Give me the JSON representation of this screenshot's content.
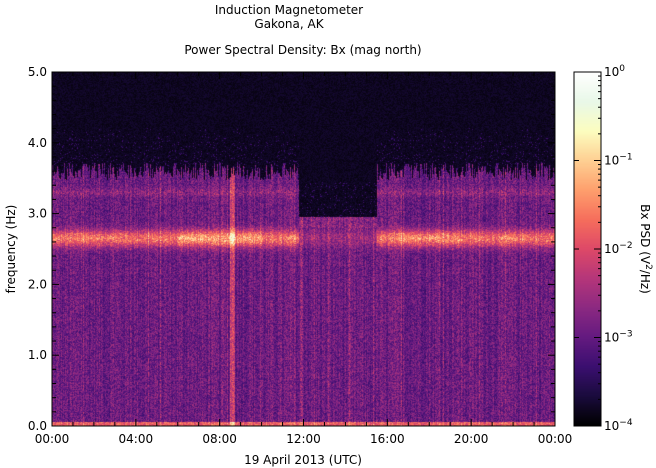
{
  "header": {
    "line1": "Induction Magnetometer",
    "line2": "Gakona, AK",
    "subtitle": "Power Spectral Density: Bx (mag north)"
  },
  "chart_data": {
    "type": "heatmap",
    "title": "Power Spectral Density: Bx (mag north)",
    "xlabel": "19 April 2013 (UTC)",
    "ylabel": "frequency (Hz)",
    "x_ticks": [
      "00:00",
      "04:00",
      "08:00",
      "12:00",
      "16:00",
      "20:00",
      "00:00"
    ],
    "x_range_hours": [
      0,
      24
    ],
    "y_ticks": [
      "0.0",
      "1.0",
      "2.0",
      "3.0",
      "4.0",
      "5.0"
    ],
    "y_values": [
      0,
      1,
      2,
      3,
      4,
      5
    ],
    "ylim": [
      0,
      5
    ],
    "colorbar": {
      "label_main": "Bx PSD (V",
      "label_sup": "2",
      "label_end": "/Hz)",
      "scale": "log",
      "range": [
        0.0001,
        1
      ],
      "ticks": [
        {
          "value": 0.0001,
          "base": "10",
          "exp": "−4"
        },
        {
          "value": 0.001,
          "base": "10",
          "exp": "−3"
        },
        {
          "value": 0.01,
          "base": "10",
          "exp": "−2"
        },
        {
          "value": 0.1,
          "base": "10",
          "exp": "−1"
        },
        {
          "value": 1,
          "base": "10",
          "exp": "0"
        }
      ],
      "colormap": [
        "#000000",
        "#1a0b3d",
        "#3b0f70",
        "#641a80",
        "#8c2981",
        "#b5367a",
        "#de4968",
        "#f66e5c",
        "#fe9f6d",
        "#fecf92",
        "#fcfdbf",
        "#e9f8e8",
        "#ffffff"
      ]
    },
    "features": {
      "band_center_hz": 2.65,
      "band_halfwidth_hz": 0.12,
      "secondary_band_hz": 3.3,
      "noise_ceiling_hz": 3.6,
      "noise_ceiling_hz_midday": 2.95,
      "midday_interval_hours": [
        11.8,
        15.5
      ],
      "vertical_streak_hours": 8.6
    }
  }
}
